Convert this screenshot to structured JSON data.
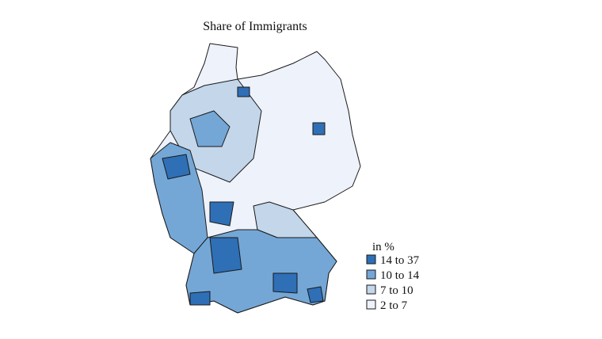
{
  "title": "Share of Immigrants",
  "legend": {
    "title": "in %",
    "items": [
      {
        "label": "14 to 37",
        "color": "#2f6fb6"
      },
      {
        "label": "10 to 14",
        "color": "#74a7d6"
      },
      {
        "label": "7 to 10",
        "color": "#c3d6ea"
      },
      {
        "label": "2 to 7",
        "color": "#eef2fa"
      }
    ]
  }
}
